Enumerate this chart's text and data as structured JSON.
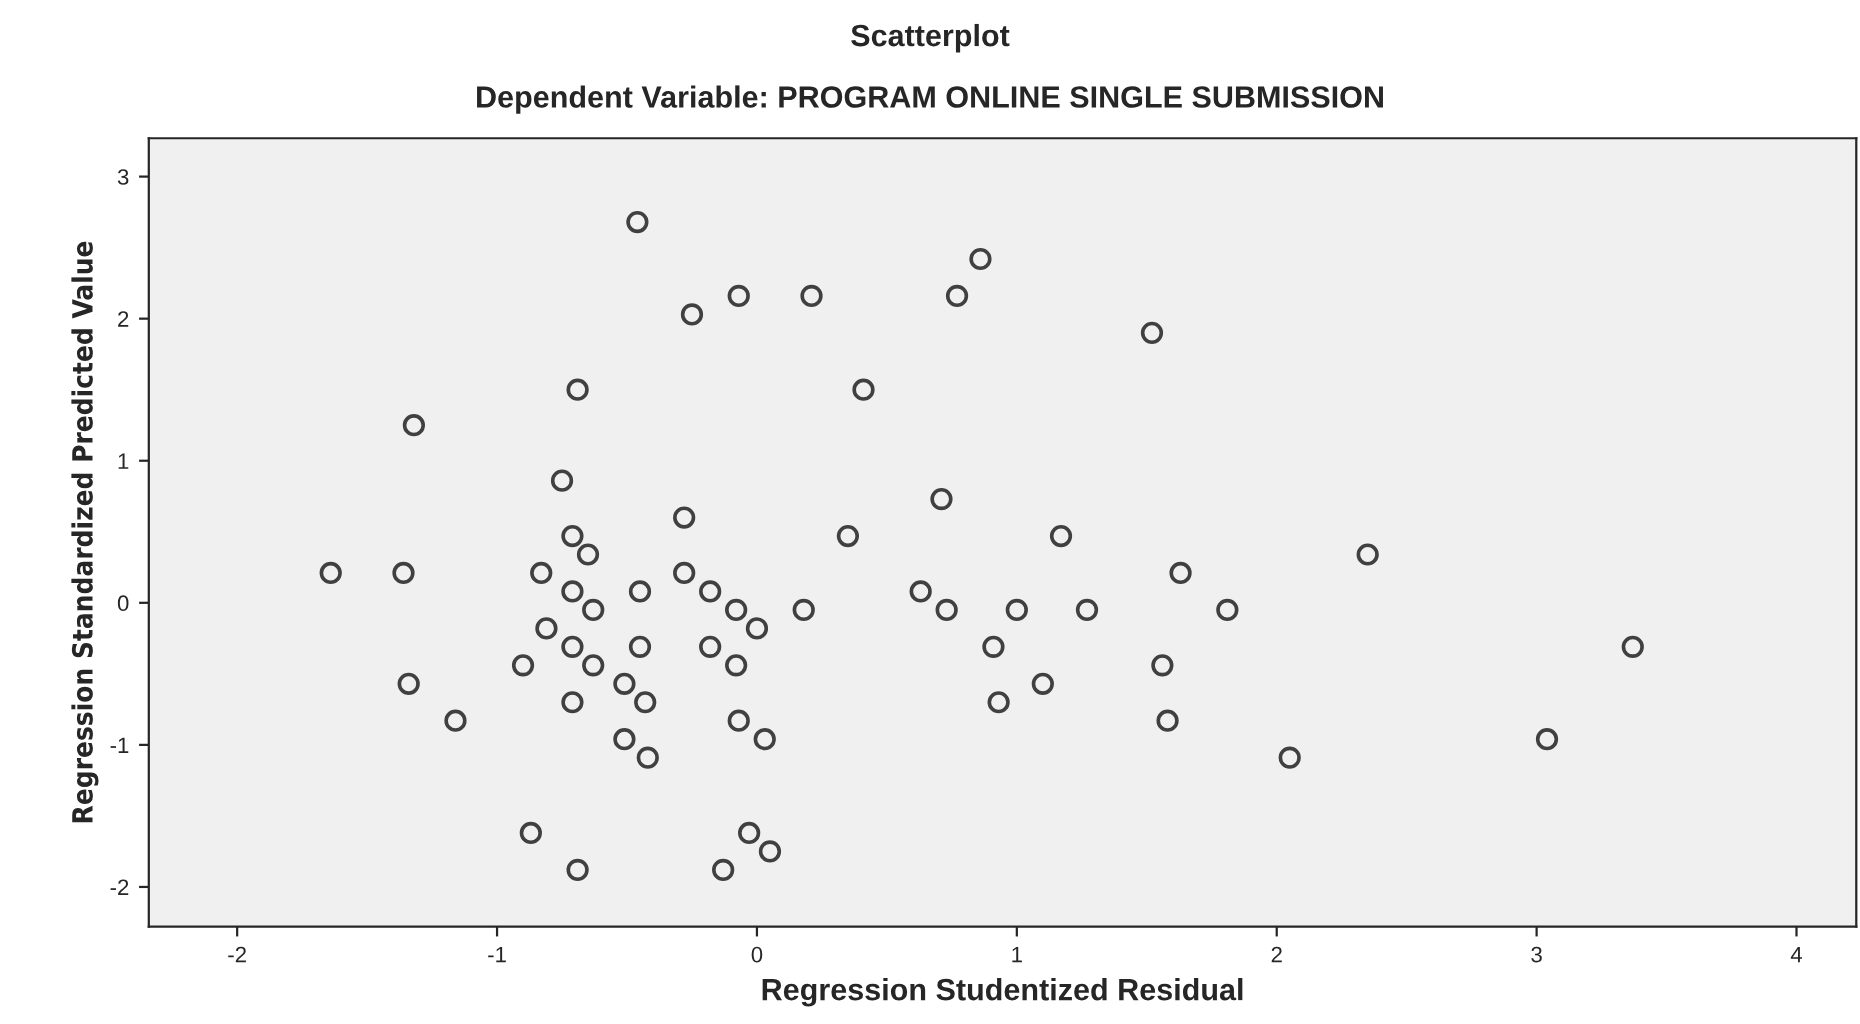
{
  "chart_data": {
    "type": "scatter",
    "title": "Scatterplot",
    "subtitle": "Dependent Variable: PROGRAM ONLINE SINGLE SUBMISSION",
    "xlabel": "Regression Studentized Residual",
    "ylabel": "Regression Standardized Predicted Value",
    "xlim": [
      -2.34,
      4.23
    ],
    "ylim": [
      -2.28,
      3.27
    ],
    "xticks": [
      -2,
      -1,
      0,
      1,
      2,
      3,
      4
    ],
    "yticks": [
      -2,
      -1,
      0,
      1,
      2,
      3
    ],
    "grid": false,
    "marker": "circle",
    "series": [
      {
        "color": "#404040",
        "x": [
          -0.46,
          0.86,
          -0.25,
          -0.07,
          0.21,
          0.77,
          1.52,
          -0.69,
          0.41,
          -1.32,
          -0.75,
          0.71,
          -0.71,
          -0.28,
          0.35,
          1.17,
          -0.65,
          2.35,
          -1.64,
          -1.36,
          -0.83,
          -0.28,
          1.63,
          -0.71,
          -0.45,
          -0.18,
          0.63,
          -0.63,
          -0.08,
          0.18,
          0.73,
          1.0,
          1.27,
          1.81,
          -0.81,
          0.0,
          -0.71,
          -0.45,
          -0.18,
          0.91,
          3.37,
          -0.9,
          -0.63,
          -0.08,
          1.56,
          -0.51,
          -1.34,
          1.1,
          -0.71,
          -0.43,
          0.93,
          -1.16,
          -0.07,
          1.58,
          -0.51,
          0.03,
          3.04,
          -0.42,
          2.05,
          -0.87,
          -0.03,
          0.05,
          -0.69,
          -0.13
        ],
        "values": [
          2.68,
          2.42,
          2.03,
          2.16,
          2.16,
          2.16,
          1.9,
          1.5,
          1.5,
          1.25,
          0.86,
          0.73,
          0.47,
          0.6,
          0.47,
          0.47,
          0.34,
          0.34,
          0.21,
          0.21,
          0.21,
          0.21,
          0.21,
          0.08,
          0.08,
          0.08,
          0.08,
          -0.05,
          -0.05,
          -0.05,
          -0.05,
          -0.05,
          -0.05,
          -0.05,
          -0.18,
          -0.18,
          -0.31,
          -0.31,
          -0.31,
          -0.31,
          -0.31,
          -0.44,
          -0.44,
          -0.44,
          -0.44,
          -0.57,
          -0.57,
          -0.57,
          -0.7,
          -0.7,
          -0.7,
          -0.83,
          -0.83,
          -0.83,
          -0.96,
          -0.96,
          -0.96,
          -1.09,
          -1.09,
          -1.62,
          -1.62,
          -1.75,
          -1.88,
          -1.88
        ]
      }
    ]
  }
}
